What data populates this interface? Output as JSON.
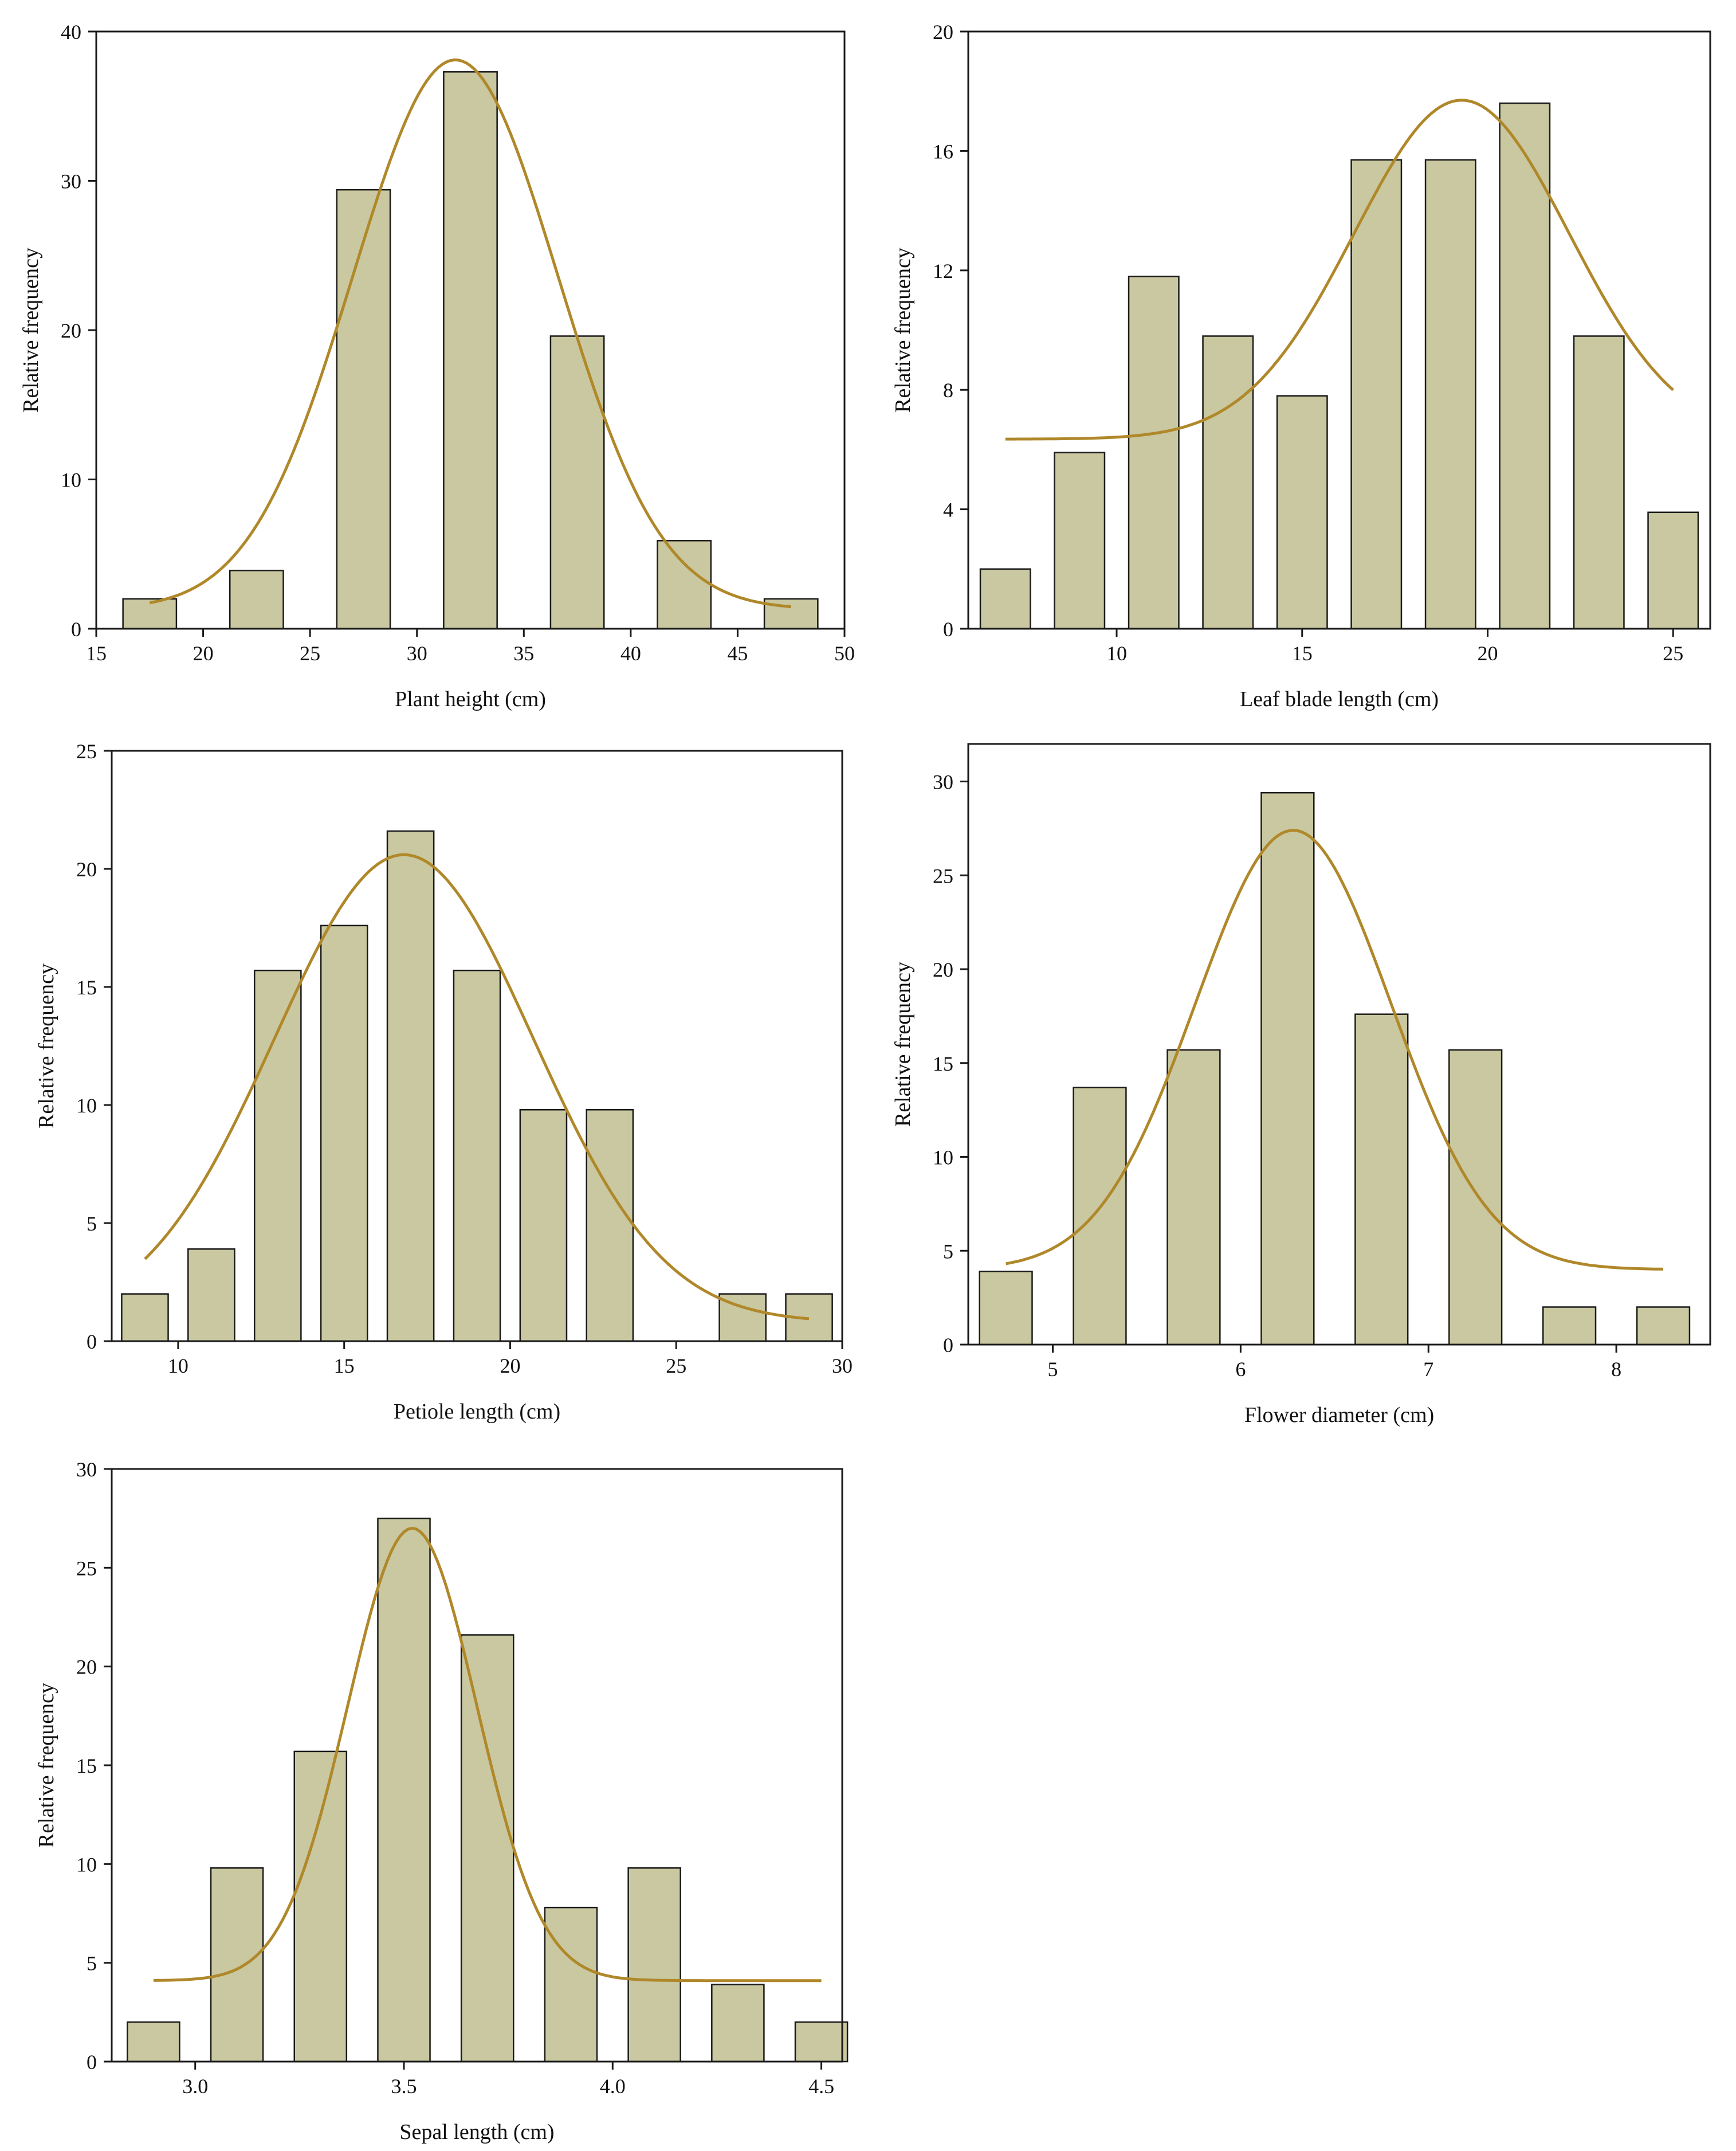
{
  "colors": {
    "bar_fill": "#c9c8a0",
    "bar_stroke": "#1a1a1a",
    "curve": "#b0882a",
    "axis": "#1a1a1a"
  },
  "chart_data": [
    {
      "type": "bar",
      "title": "",
      "xlabel": "Plant height (cm)",
      "ylabel": "Relative frequency",
      "xlim": [
        15,
        50
      ],
      "ylim": [
        0,
        40
      ],
      "xticks": [
        15,
        20,
        25,
        30,
        35,
        40,
        45,
        50
      ],
      "yticks": [
        0,
        10,
        20,
        30,
        40
      ],
      "bar_width": 2.5,
      "bins": [
        17.5,
        22.5,
        27.5,
        32.5,
        37.5,
        42.5,
        47.5
      ],
      "values": [
        2.0,
        3.9,
        29.4,
        37.3,
        19.6,
        5.9,
        2.0
      ],
      "fit_curve": {
        "type": "gaussian",
        "x_range": [
          17.5,
          47.5
        ],
        "baseline": 1.3,
        "amplitude": 36.8,
        "center": 31.8,
        "sigma": 4.8
      }
    },
    {
      "type": "bar",
      "title": "",
      "xlabel": "Leaf blade length (cm)",
      "ylabel": "Relative frequency",
      "xlim": [
        6,
        26
      ],
      "ylim": [
        0,
        20
      ],
      "xticks": [
        10,
        15,
        20,
        25
      ],
      "yticks": [
        0,
        4,
        8,
        12,
        16,
        20
      ],
      "bar_width": 1.35,
      "bins": [
        7,
        9,
        11,
        13,
        15,
        17,
        19,
        21,
        23,
        25
      ],
      "values": [
        2.0,
        5.9,
        11.8,
        9.8,
        7.8,
        15.7,
        15.7,
        17.6,
        9.8,
        3.9
      ],
      "fit_curve": {
        "type": "gaussian",
        "x_range": [
          7,
          25
        ],
        "baseline": 6.35,
        "amplitude": 11.35,
        "center": 19.3,
        "sigma": 2.9
      }
    },
    {
      "type": "bar",
      "title": "",
      "xlabel": "Petiole length (cm)",
      "ylabel": "Relative frequency",
      "xlim": [
        8,
        30
      ],
      "ylim": [
        0,
        25
      ],
      "xticks": [
        10,
        15,
        20,
        25,
        30
      ],
      "yticks": [
        0,
        5,
        10,
        15,
        20,
        25
      ],
      "bar_width": 1.4,
      "bins": [
        9,
        11,
        13,
        15,
        17,
        19,
        21,
        23,
        25,
        27,
        29
      ],
      "values": [
        2.0,
        3.9,
        15.7,
        17.6,
        21.6,
        15.7,
        9.8,
        9.8,
        0,
        2.0,
        2.0
      ],
      "fit_curve": {
        "type": "gaussian",
        "x_range": [
          9,
          29
        ],
        "baseline": 0.8,
        "amplitude": 19.8,
        "center": 16.8,
        "sigma": 3.9
      }
    },
    {
      "type": "bar",
      "title": "",
      "xlabel": "Flower diameter (cm)",
      "ylabel": "Relative frequency",
      "xlim": [
        4.55,
        8.5
      ],
      "ylim": [
        0,
        32
      ],
      "xticks": [
        5,
        6,
        7,
        8
      ],
      "yticks": [
        0,
        5,
        10,
        15,
        20,
        25,
        30
      ],
      "bar_width": 0.28,
      "bins": [
        4.75,
        5.25,
        5.75,
        6.25,
        6.75,
        7.25,
        7.75,
        8.25
      ],
      "values": [
        3.9,
        13.7,
        15.7,
        29.4,
        17.6,
        15.7,
        2.0,
        2.0
      ],
      "fit_curve": {
        "type": "gaussian",
        "x_range": [
          4.75,
          8.25
        ],
        "baseline": 4.0,
        "amplitude": 23.4,
        "center": 6.28,
        "sigma": 0.52
      }
    },
    {
      "type": "bar",
      "title": "",
      "xlabel": "Sepal length (cm)",
      "ylabel": "Relative frequency",
      "xlim": [
        2.8,
        4.55
      ],
      "ylim": [
        0,
        30
      ],
      "xticks": [
        "3.0",
        "3.5",
        "4.0",
        "4.5"
      ],
      "yticks": [
        0,
        5,
        10,
        15,
        20,
        25,
        30
      ],
      "bar_width": 0.125,
      "bins": [
        2.9,
        3.1,
        3.3,
        3.5,
        3.7,
        3.9,
        4.1,
        4.3,
        4.5
      ],
      "values": [
        2.0,
        9.8,
        15.7,
        27.5,
        21.6,
        7.8,
        9.8,
        3.9,
        2.0
      ],
      "fit_curve": {
        "type": "gaussian",
        "x_range": [
          2.9,
          4.5
        ],
        "baseline": 4.1,
        "amplitude": 22.9,
        "center": 3.52,
        "sigma": 0.155
      }
    }
  ]
}
